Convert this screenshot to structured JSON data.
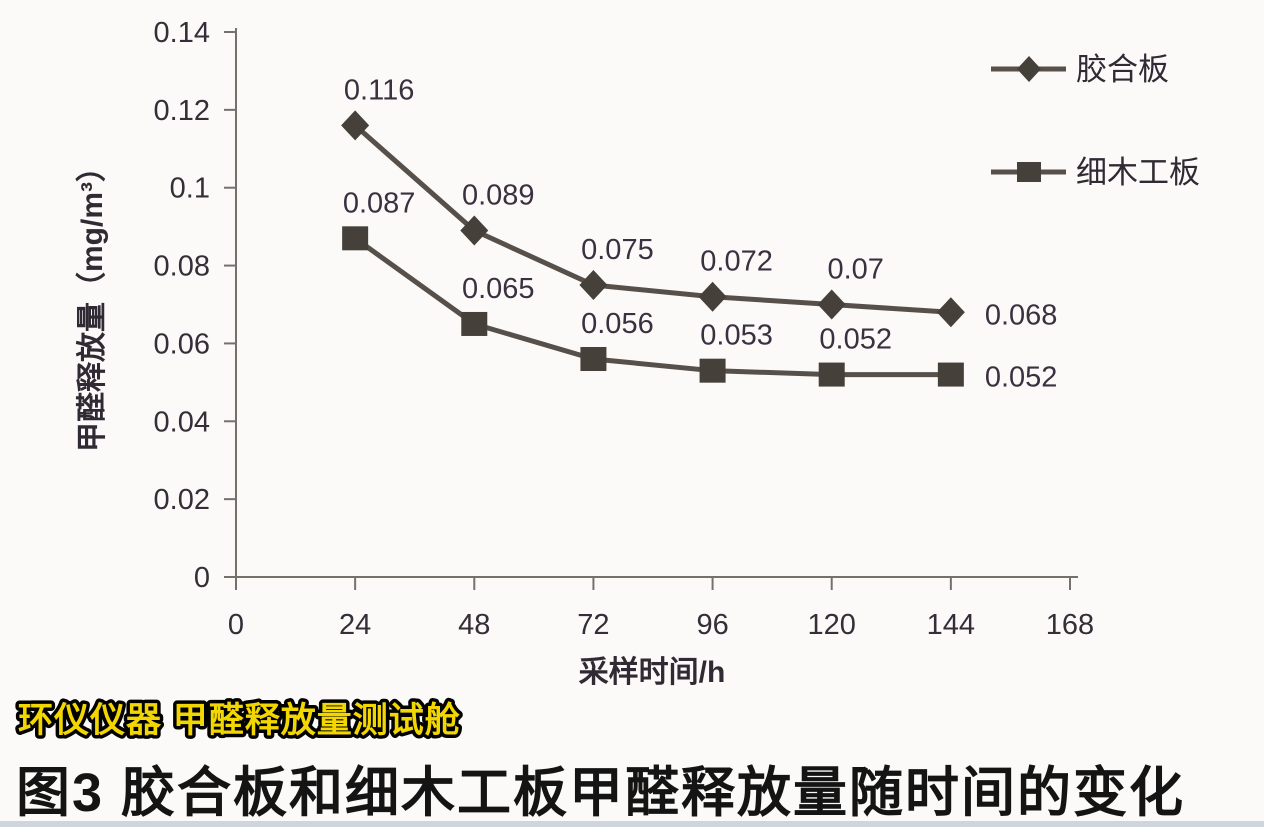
{
  "page": {
    "watermark": "环仪仪器 甲醛释放量测试舱",
    "caption": "图3 胶合板和细木工板甲醛释放量随时间的变化"
  },
  "chart_data": {
    "type": "line",
    "title": "",
    "xlabel": "采样时间/h",
    "ylabel": "甲醛释放量（mg/m³）",
    "xlim": [
      0,
      168
    ],
    "ylim": [
      0,
      0.14
    ],
    "xticks": [
      0,
      24,
      48,
      72,
      96,
      120,
      144,
      168
    ],
    "yticks": [
      "0",
      "0.02",
      "0.04",
      "0.06",
      "0.08",
      "0.1",
      "0.12",
      "0.14"
    ],
    "grid": false,
    "legend_position": "top-right",
    "x": [
      24,
      48,
      72,
      96,
      120,
      144
    ],
    "series": [
      {
        "name": "胶合板",
        "marker": "diamond",
        "values": [
          0.116,
          0.089,
          0.075,
          0.072,
          0.07,
          0.068
        ],
        "point_labels": [
          "0.116",
          "0.089",
          "0.075",
          "0.072",
          "0.07",
          "0.068"
        ]
      },
      {
        "name": "细木工板",
        "marker": "square",
        "values": [
          0.087,
          0.065,
          0.056,
          0.053,
          0.052,
          0.052
        ],
        "point_labels": [
          "0.087",
          "0.065",
          "0.056",
          "0.053",
          "0.052",
          "0.052"
        ]
      }
    ],
    "colors": {
      "line": "#57504a",
      "marker": "#454039",
      "axis": "#76706b",
      "tick_label": "#332e38",
      "point_label": "#3a3040",
      "watermark_fill": "#f2d600",
      "watermark_outline": "#000000"
    }
  }
}
